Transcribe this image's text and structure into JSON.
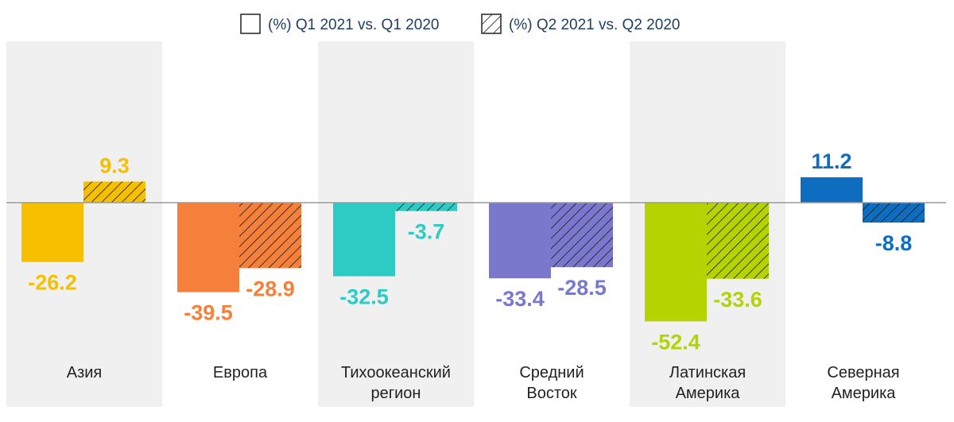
{
  "chart_data": {
    "type": "bar",
    "title": "",
    "xlabel": "",
    "ylabel": "",
    "ylim": [
      -60,
      14
    ],
    "grid": false,
    "legend_position": "top-center",
    "categories": [
      [
        "Азия"
      ],
      [
        "Европа"
      ],
      [
        "Тихоокеанский",
        "регион"
      ],
      [
        "Средний",
        "Восток"
      ],
      [
        "Латинская",
        "Америка"
      ],
      [
        "Северная",
        "Америка"
      ]
    ],
    "category_colors": [
      "#f6c000",
      "#f4803c",
      "#2ecbc4",
      "#7a78cc",
      "#b5d300",
      "#0f6dc0"
    ],
    "series": [
      {
        "name": "(%) Q1 2021 vs. Q1 2020",
        "pattern": "solid",
        "values": [
          -26.2,
          -39.5,
          -32.5,
          -33.4,
          -52.4,
          11.2
        ]
      },
      {
        "name": "(%) Q2 2021 vs. Q2 2020",
        "pattern": "hatched",
        "values": [
          9.3,
          -28.9,
          -3.7,
          -28.5,
          -33.6,
          -8.8
        ]
      }
    ],
    "value_labels": [
      [
        "-26.2",
        "-39.5",
        "-32.5",
        "-33.4",
        "-52.4",
        "11.2"
      ],
      [
        "9.3",
        "-28.9",
        "-3.7",
        "-28.5",
        "-33.6",
        "-8.8"
      ]
    ]
  },
  "colors": {
    "legend_text": "#1f3f64",
    "band": "#f0f0f0",
    "zero_line": "#9a9a9a"
  }
}
